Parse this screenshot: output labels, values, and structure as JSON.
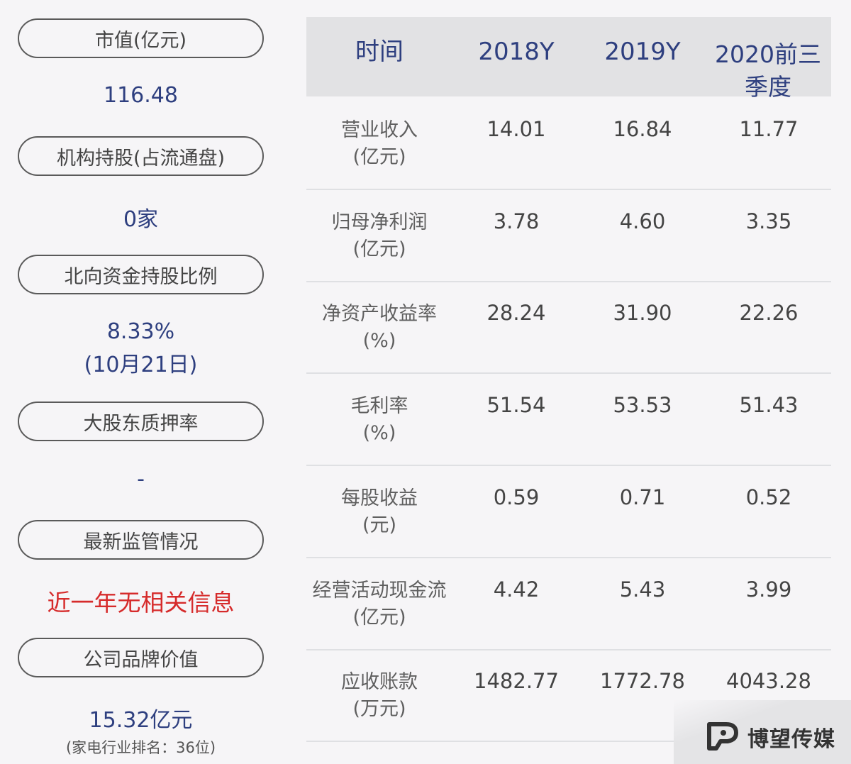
{
  "left": {
    "items": [
      {
        "label": "市值(亿元)",
        "value": "116.48"
      },
      {
        "label": "机构持股(占流通盘)",
        "value": "0家"
      },
      {
        "label": "北向资金持股比例",
        "value": "8.33%",
        "value2": "(10月21日)"
      },
      {
        "label": "大股东质押率",
        "value": "-"
      },
      {
        "label": "最新监管情况",
        "value": "近一年无相关信息"
      },
      {
        "label": "公司品牌价值",
        "value": "15.32亿元",
        "note": "(家电行业排名：36位)"
      }
    ]
  },
  "table": {
    "headers": [
      "时间",
      "2018Y",
      "2019Y",
      "2020前三季度"
    ],
    "rows": [
      {
        "label1": "营业收入",
        "label2": "(亿元)",
        "v": [
          "14.01",
          "16.84",
          "11.77"
        ]
      },
      {
        "label1": "归母净利润",
        "label2": "(亿元)",
        "v": [
          "3.78",
          "4.60",
          "3.35"
        ]
      },
      {
        "label1": "净资产收益率",
        "label2": "(%)",
        "v": [
          "28.24",
          "31.90",
          "22.26"
        ]
      },
      {
        "label1": "毛利率",
        "label2": "(%)",
        "v": [
          "51.54",
          "53.53",
          "51.43"
        ]
      },
      {
        "label1": "每股收益",
        "label2": "(元)",
        "v": [
          "0.59",
          "0.71",
          "0.52"
        ]
      },
      {
        "label1": "经营活动现金流",
        "label2": "(亿元)",
        "v": [
          "4.42",
          "5.43",
          "3.99"
        ]
      },
      {
        "label1": "应收账款",
        "label2": "(万元)",
        "v": [
          "1482.77",
          "1772.78",
          "4043.28"
        ]
      }
    ]
  },
  "logo": {
    "text": "博望传媒",
    "icon": "logo-mark-icon"
  },
  "colors": {
    "accent": "#2e3f7f",
    "alert": "#d62b2b",
    "header_bg": "#e2e2e4"
  }
}
